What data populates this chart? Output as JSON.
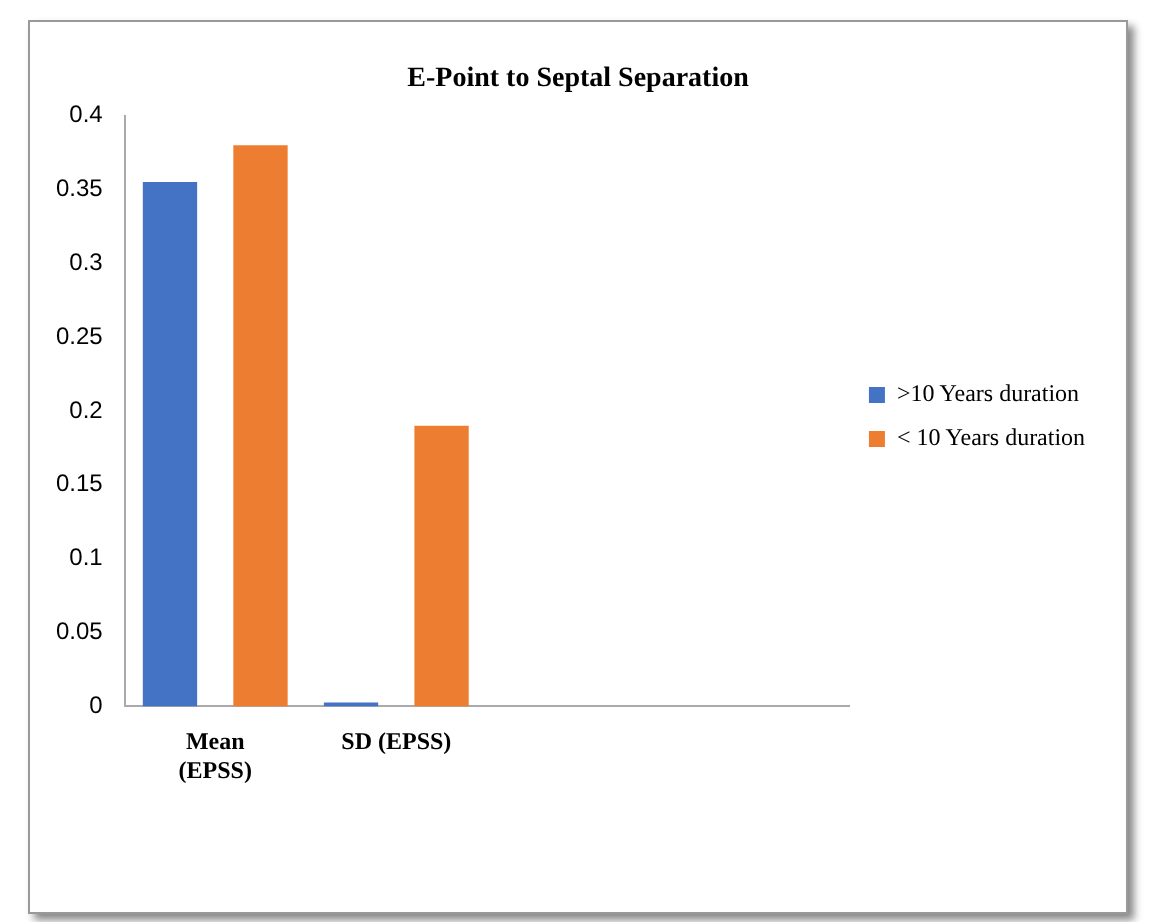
{
  "chart_data": {
    "type": "bar",
    "title": "E-Point to Septal Separation",
    "categories": [
      "Mean (EPSS)",
      "SD (EPSS)",
      null,
      null
    ],
    "series": [
      {
        "name": ">10 Years duration",
        "color": "#4472c4",
        "values": [
          0.355,
          0,
          null,
          null
        ]
      },
      {
        "name": "< 10 Years duration",
        "color": "#ed7d31",
        "values": [
          0.38,
          0.19,
          null,
          null
        ]
      }
    ],
    "ylim": [
      0,
      0.4
    ],
    "yticks": [
      0,
      0.05,
      0.1,
      0.15,
      0.2,
      0.25,
      0.3,
      0.35,
      0.4
    ],
    "grid": false,
    "legend": "right"
  }
}
